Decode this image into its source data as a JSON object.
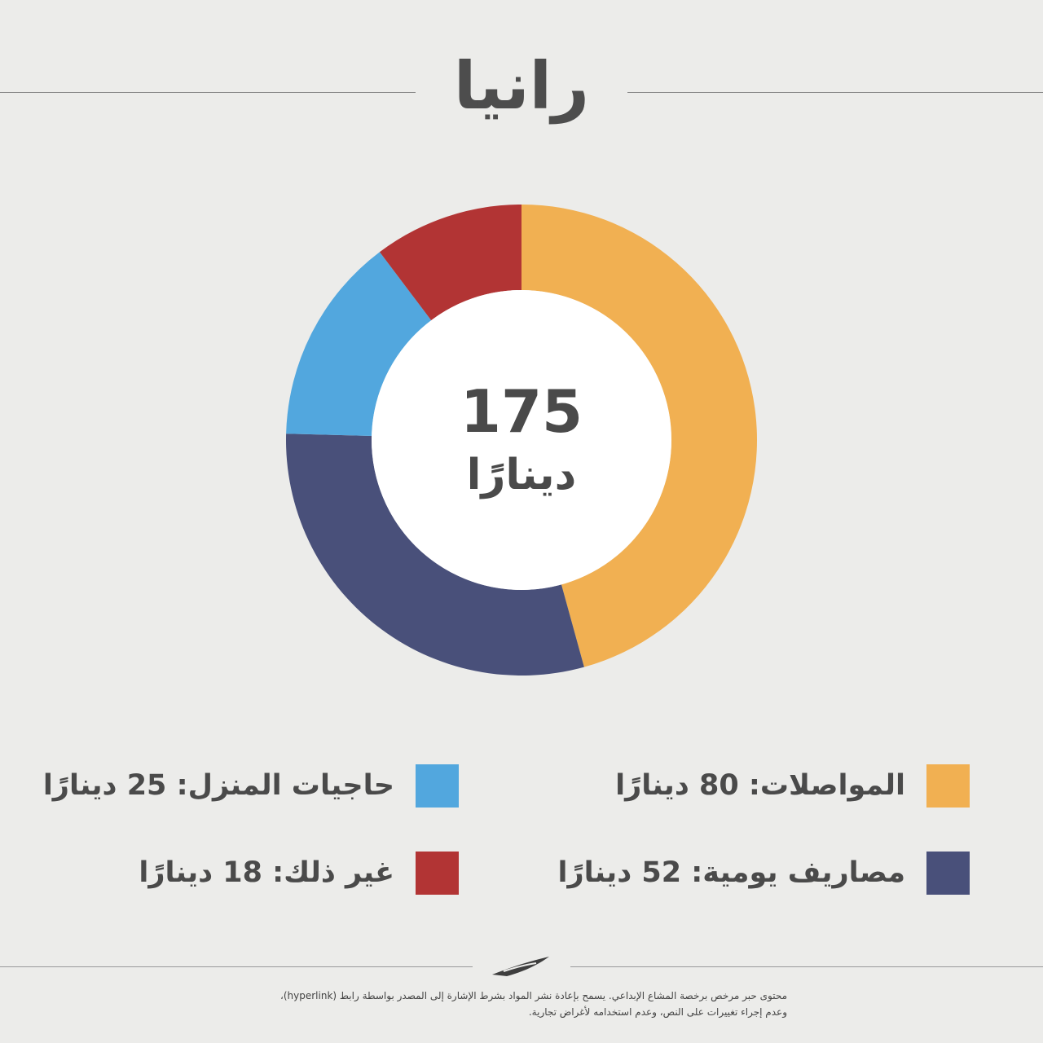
{
  "title": "رانيا",
  "chart_data": {
    "type": "pie",
    "center_value": "175",
    "center_unit": "دينارًا",
    "slices": [
      {
        "label": "المواصلات: 80 دينارًا",
        "value": 80,
        "color": "#f1b052"
      },
      {
        "label": "مصاريف يومية: 52 دينارًا",
        "value": 52,
        "color": "#49507a"
      },
      {
        "label": "حاجيات المنزل: 25 دينارًا",
        "value": 25,
        "color": "#52a7de"
      },
      {
        "label": "غير ذلك: 18 دينارًا",
        "value": 18,
        "color": "#b23434"
      }
    ],
    "legend_position": "bottom"
  },
  "footer": {
    "line1": "محتوى حبر مرخص برخصة المشاع الإبداعي. يسمح بإعادة نشر المواد بشرط الإشارة إلى المصدر بواسطة رابط (hyperlink)،",
    "line2": "وعدم إجراء تغييرات على النص، وعدم استخدامه لأغراض تجارية."
  }
}
